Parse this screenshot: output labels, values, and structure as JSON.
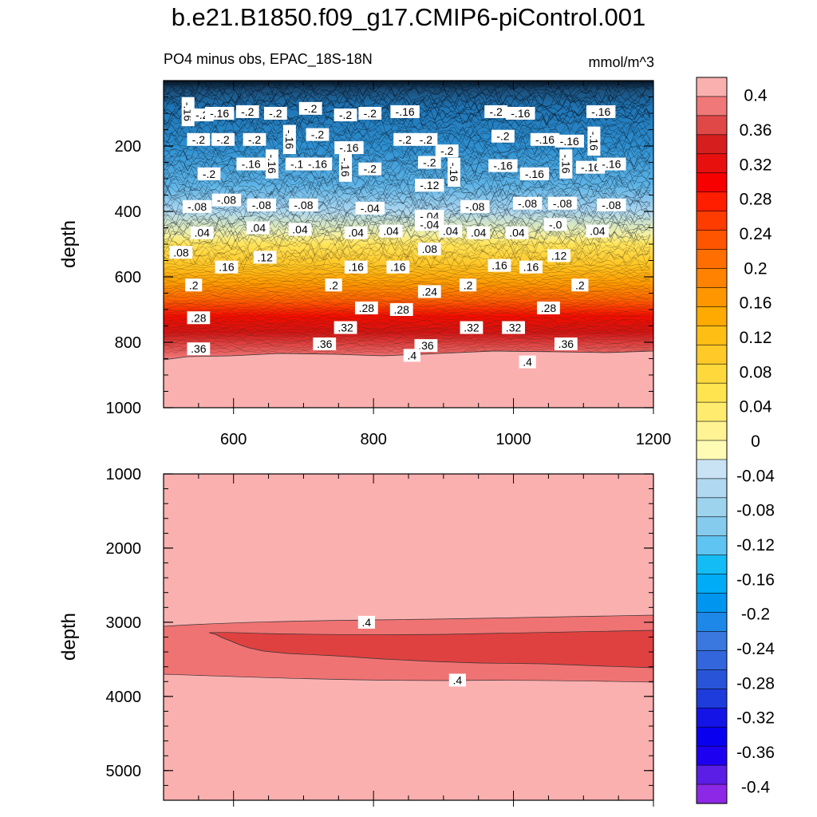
{
  "figure": {
    "title": "b.e21.B1850.f09_g17.CMIP6-piControl.001",
    "subtitle_left": "PO4 minus obs, EPAC_18S-18N",
    "subtitle_right": "mmol/m^3"
  },
  "chart_data": [
    {
      "type": "contour",
      "panel": "upper",
      "ylabel": "depth",
      "xlabel": "",
      "xlim": [
        500,
        1200
      ],
      "ylim": [
        1000,
        0
      ],
      "xticks": [
        600,
        800,
        1000,
        1200
      ],
      "xtick_labels": [
        "600",
        "800",
        "1000",
        "1200"
      ],
      "yticks": [
        200,
        400,
        600,
        800,
        1000
      ],
      "ytick_labels": [
        "200",
        "400",
        "600",
        "800",
        "1000"
      ],
      "contour_labels": [
        {
          "text": "-.16",
          "x": 535,
          "y": 95
        },
        {
          "text": "-.2",
          "x": 555,
          "y": 105
        },
        {
          "text": "-.16",
          "x": 580,
          "y": 100
        },
        {
          "text": "-.2",
          "x": 620,
          "y": 95
        },
        {
          "text": "-.2",
          "x": 660,
          "y": 100
        },
        {
          "text": "-.2",
          "x": 710,
          "y": 85
        },
        {
          "text": "-.2",
          "x": 760,
          "y": 105
        },
        {
          "text": "-.2",
          "x": 795,
          "y": 100
        },
        {
          "text": "-.16",
          "x": 845,
          "y": 95
        },
        {
          "text": "-.2",
          "x": 975,
          "y": 95
        },
        {
          "text": "-.16",
          "x": 1010,
          "y": 100
        },
        {
          "text": "-.16",
          "x": 1125,
          "y": 95
        },
        {
          "text": "-.2",
          "x": 550,
          "y": 180
        },
        {
          "text": "-.2",
          "x": 585,
          "y": 180
        },
        {
          "text": "-.2",
          "x": 630,
          "y": 180
        },
        {
          "text": "-.16",
          "x": 680,
          "y": 180
        },
        {
          "text": "-.2",
          "x": 720,
          "y": 165
        },
        {
          "text": "-.16",
          "x": 765,
          "y": 205
        },
        {
          "text": "-.2",
          "x": 845,
          "y": 180
        },
        {
          "text": "-.2",
          "x": 875,
          "y": 180
        },
        {
          "text": "-.2",
          "x": 905,
          "y": 215
        },
        {
          "text": "-.2",
          "x": 985,
          "y": 170
        },
        {
          "text": "-.16",
          "x": 1045,
          "y": 180
        },
        {
          "text": "-.16",
          "x": 1080,
          "y": 185
        },
        {
          "text": "-.16",
          "x": 1115,
          "y": 185
        },
        {
          "text": "-.2",
          "x": 565,
          "y": 285
        },
        {
          "text": "-.16",
          "x": 625,
          "y": 255
        },
        {
          "text": "-.16",
          "x": 655,
          "y": 255
        },
        {
          "text": "-.16",
          "x": 695,
          "y": 255
        },
        {
          "text": "-.16",
          "x": 720,
          "y": 255
        },
        {
          "text": "-.16",
          "x": 760,
          "y": 265
        },
        {
          "text": "-.2",
          "x": 795,
          "y": 270
        },
        {
          "text": "-.2",
          "x": 880,
          "y": 250
        },
        {
          "text": "-.16",
          "x": 915,
          "y": 280
        },
        {
          "text": "-.16",
          "x": 985,
          "y": 260
        },
        {
          "text": "-.16",
          "x": 1030,
          "y": 285
        },
        {
          "text": "-.16",
          "x": 1075,
          "y": 255
        },
        {
          "text": "-.16",
          "x": 1110,
          "y": 265
        },
        {
          "text": "-.16",
          "x": 1140,
          "y": 255
        },
        {
          "text": "-.12",
          "x": 880,
          "y": 320
        },
        {
          "text": "-.08",
          "x": 548,
          "y": 385
        },
        {
          "text": "-.08",
          "x": 590,
          "y": 365
        },
        {
          "text": "-.08",
          "x": 640,
          "y": 380
        },
        {
          "text": "-.08",
          "x": 700,
          "y": 380
        },
        {
          "text": "-.04",
          "x": 795,
          "y": 390
        },
        {
          "text": "-.04",
          "x": 880,
          "y": 415
        },
        {
          "text": "-.04",
          "x": 880,
          "y": 440
        },
        {
          "text": "-.08",
          "x": 945,
          "y": 385
        },
        {
          "text": "-.08",
          "x": 1020,
          "y": 375
        },
        {
          "text": "-.08",
          "x": 1070,
          "y": 375
        },
        {
          "text": "-.08",
          "x": 1140,
          "y": 380
        },
        {
          "text": ".04",
          "x": 555,
          "y": 465
        },
        {
          "text": ".04",
          "x": 635,
          "y": 450
        },
        {
          "text": ".04",
          "x": 695,
          "y": 455
        },
        {
          "text": ".04",
          "x": 775,
          "y": 465
        },
        {
          "text": ".04",
          "x": 825,
          "y": 460
        },
        {
          "text": ".04",
          "x": 910,
          "y": 460
        },
        {
          "text": ".04",
          "x": 950,
          "y": 465
        },
        {
          "text": ".04",
          "x": 1005,
          "y": 465
        },
        {
          "text": "-.0",
          "x": 1060,
          "y": 440
        },
        {
          "text": ".04",
          "x": 1120,
          "y": 460
        },
        {
          "text": ".08",
          "x": 525,
          "y": 525
        },
        {
          "text": ".12",
          "x": 645,
          "y": 540
        },
        {
          "text": ".16",
          "x": 590,
          "y": 570
        },
        {
          "text": ".16",
          "x": 775,
          "y": 570
        },
        {
          "text": ".16",
          "x": 835,
          "y": 570
        },
        {
          "text": ".08",
          "x": 880,
          "y": 515
        },
        {
          "text": ".16",
          "x": 980,
          "y": 565
        },
        {
          "text": ".16",
          "x": 1025,
          "y": 570
        },
        {
          "text": ".12",
          "x": 1065,
          "y": 535
        },
        {
          "text": ".2",
          "x": 543,
          "y": 625
        },
        {
          "text": ".2",
          "x": 743,
          "y": 625
        },
        {
          "text": ".2",
          "x": 935,
          "y": 625
        },
        {
          "text": ".2",
          "x": 1095,
          "y": 625
        },
        {
          "text": ".24",
          "x": 880,
          "y": 645
        },
        {
          "text": ".28",
          "x": 550,
          "y": 725
        },
        {
          "text": ".28",
          "x": 790,
          "y": 695
        },
        {
          "text": ".28",
          "x": 840,
          "y": 700
        },
        {
          "text": ".28",
          "x": 1050,
          "y": 695
        },
        {
          "text": ".32",
          "x": 760,
          "y": 755
        },
        {
          "text": ".32",
          "x": 940,
          "y": 755
        },
        {
          "text": ".32",
          "x": 1000,
          "y": 755
        },
        {
          "text": ".36",
          "x": 550,
          "y": 820
        },
        {
          "text": ".36",
          "x": 730,
          "y": 805
        },
        {
          "text": ".36",
          "x": 875,
          "y": 810
        },
        {
          "text": ".36",
          "x": 1075,
          "y": 805
        },
        {
          "text": ".4",
          "x": 855,
          "y": 840
        },
        {
          "text": ".4",
          "x": 1020,
          "y": 860
        }
      ]
    },
    {
      "type": "contour",
      "panel": "lower",
      "ylabel": "depth",
      "xlabel": "",
      "xlim": [
        500,
        1200
      ],
      "ylim": [
        5400,
        1000
      ],
      "yticks": [
        1000,
        2000,
        3000,
        4000,
        5000
      ],
      "ytick_labels": [
        "1000",
        "2000",
        "3000",
        "4000",
        "5000"
      ],
      "contour_labels": [
        {
          "text": ".4",
          "x": 790,
          "y": 3000
        },
        {
          "text": ".4",
          "x": 920,
          "y": 3780
        }
      ]
    },
    {
      "type": "colorbar",
      "levels": [
        -0.4,
        -0.38,
        -0.36,
        -0.34,
        -0.32,
        -0.3,
        -0.28,
        -0.26,
        -0.24,
        -0.22,
        -0.2,
        -0.18,
        -0.16,
        -0.14,
        -0.12,
        -0.1,
        -0.08,
        -0.06,
        -0.04,
        -0.02,
        0,
        0.02,
        0.04,
        0.06,
        0.08,
        0.1,
        0.12,
        0.14,
        0.16,
        0.18,
        0.2,
        0.22,
        0.24,
        0.26,
        0.28,
        0.3,
        0.32,
        0.34,
        0.36,
        0.38,
        0.4
      ],
      "labels": [
        "0.4",
        "0.36",
        "0.32",
        "0.28",
        "0.24",
        "0.2",
        "0.16",
        "0.12",
        "0.08",
        "0.04",
        "0",
        "-0.04",
        "-0.08",
        "-0.12",
        "-0.16",
        "-0.2",
        "-0.24",
        "-0.28",
        "-0.32",
        "-0.36",
        "-0.4"
      ],
      "label_values": [
        0.4,
        0.36,
        0.32,
        0.28,
        0.24,
        0.2,
        0.16,
        0.12,
        0.08,
        0.04,
        0,
        -0.04,
        -0.08,
        -0.12,
        -0.16,
        -0.2,
        -0.24,
        -0.28,
        -0.32,
        -0.36,
        -0.4
      ],
      "colors_top_to_bottom": [
        "#fbb0b0",
        "#f07878",
        "#e04848",
        "#d71e1e",
        "#e80f0f",
        "#f70000",
        "#ff1e00",
        "#ff3c00",
        "#ff5500",
        "#ff6e00",
        "#ff8200",
        "#ff9600",
        "#ffaa00",
        "#ffbe14",
        "#ffca28",
        "#ffd93c",
        "#ffe450",
        "#ffeb6e",
        "#fff394",
        "#fffbb4",
        "#c9e3f4",
        "#b0d8f0",
        "#9ed3ee",
        "#85cbee",
        "#60c4f2",
        "#14bcf5",
        "#00acf5",
        "#0096f0",
        "#1e88e8",
        "#3a78e0",
        "#3366dd",
        "#2855d8",
        "#1e3cdc",
        "#1414e6",
        "#0a00f0",
        "#1e00f0",
        "#5a1ee6",
        "#8c28e6"
      ]
    }
  ]
}
